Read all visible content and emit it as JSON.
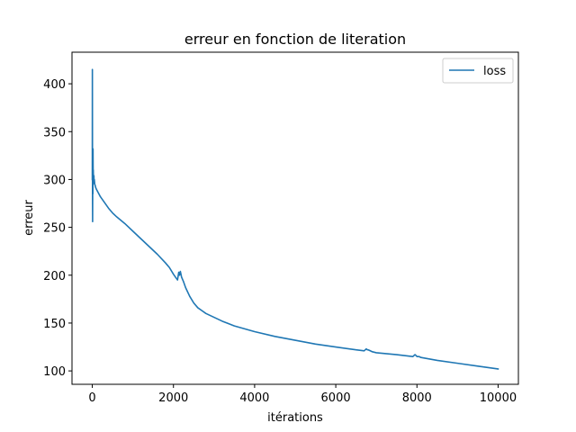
{
  "chart_data": {
    "type": "line",
    "title": "erreur en fonction de literation",
    "xlabel": "itérations",
    "ylabel": "erreur",
    "xlim": [
      -500,
      10500
    ],
    "ylim": [
      86,
      433
    ],
    "xticks": [
      0,
      2000,
      4000,
      6000,
      8000,
      10000
    ],
    "xtick_labels": [
      "0",
      "2000",
      "4000",
      "6000",
      "8000",
      "10000"
    ],
    "yticks": [
      100,
      150,
      200,
      250,
      300,
      350,
      400
    ],
    "ytick_labels": [
      "100",
      "150",
      "200",
      "250",
      "300",
      "350",
      "400"
    ],
    "grid": false,
    "legend": {
      "position": "top-right"
    },
    "series": [
      {
        "name": "loss",
        "color": "#1f77b4",
        "x": [
          0,
          2,
          4,
          6,
          8,
          10,
          12,
          14,
          16,
          18,
          20,
          22,
          25,
          30,
          35,
          40,
          45,
          50,
          60,
          70,
          80,
          100,
          150,
          200,
          300,
          400,
          500,
          600,
          800,
          1000,
          1200,
          1400,
          1600,
          1800,
          1900,
          2000,
          2050,
          2100,
          2130,
          2150,
          2170,
          2200,
          2250,
          2300,
          2400,
          2500,
          2600,
          2700,
          2800,
          3000,
          3200,
          3500,
          4000,
          4500,
          5000,
          5500,
          6000,
          6500,
          6700,
          6750,
          6780,
          6800,
          6850,
          6900,
          7000,
          7500,
          7900,
          7950,
          7980,
          8000,
          8050,
          8100,
          8500,
          9000,
          9500,
          10000
        ],
        "y": [
          300,
          415,
          350,
          275,
          256,
          300,
          290,
          285,
          300,
          332,
          315,
          305,
          310,
          298,
          300,
          304,
          296,
          300,
          295,
          294,
          292,
          290,
          286,
          282,
          276,
          270,
          265,
          261,
          254,
          246,
          238,
          230,
          222,
          213,
          208,
          201,
          198,
          195,
          203,
          200,
          204,
          198,
          193,
          187,
          178,
          171,
          166,
          163,
          160,
          156,
          152,
          147,
          141,
          136,
          132,
          128,
          125,
          122,
          121,
          123,
          122,
          122,
          121,
          120,
          119,
          117,
          115,
          117,
          116,
          115,
          115,
          114,
          111,
          108,
          105,
          102
        ]
      }
    ]
  }
}
